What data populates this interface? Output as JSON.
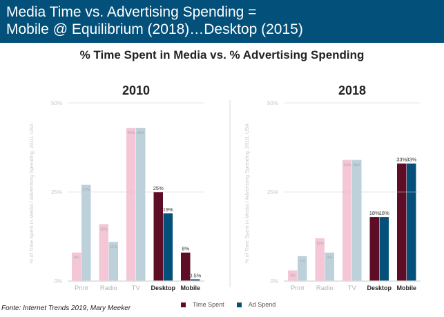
{
  "banner": {
    "line1": "Media Time vs. Advertising Spending =",
    "line2": "Mobile @ Equilibrium (2018)…Desktop (2015)",
    "color": "#03507a"
  },
  "subtitle": "% Time Spent in Media vs. % Advertising Spending",
  "source": "Fonte: Internet Trends 2019, Mary Meeker",
  "legend": [
    {
      "label": "Time Spent",
      "color": "#5e0d26"
    },
    {
      "label": "Ad Spend",
      "color": "#03507a"
    }
  ],
  "chart_data": [
    {
      "type": "bar",
      "title": "2010",
      "ylabel": "% of Time Spent in Media / Advertising Spending, 2010, USA",
      "xlabel": "",
      "ylim": [
        0,
        50
      ],
      "yticks": [
        "0%",
        "25%",
        "50%"
      ],
      "grid": true,
      "categories": [
        "Print",
        "Radio",
        "TV",
        "Desktop",
        "Mobile"
      ],
      "highlighted_categories": [
        "Desktop",
        "Mobile"
      ],
      "series": [
        {
          "name": "Time Spent",
          "values": [
            8,
            16,
            43,
            25,
            8
          ],
          "labels": [
            "8%",
            "16%",
            "43%",
            "25%",
            "8%"
          ]
        },
        {
          "name": "Ad Spend",
          "values": [
            27,
            11,
            43,
            19,
            0.5
          ],
          "labels": [
            "27%",
            "11%",
            "43%",
            "19%",
            "0.5%"
          ]
        }
      ],
      "colors": {
        "time_muted": "#f5c6d6",
        "ad_muted": "#bdd1db",
        "time": "#5e0d26",
        "ad": "#03507a"
      },
      "legend_position": "bottom"
    },
    {
      "type": "bar",
      "title": "2018",
      "ylabel": "% of Time Spent in Media / Advertising Spending, 2018, USA",
      "xlabel": "",
      "ylim": [
        0,
        50
      ],
      "yticks": [
        "0%",
        "25%",
        "50%"
      ],
      "grid": true,
      "categories": [
        "Print",
        "Radio",
        "TV",
        "Desktop",
        "Mobile"
      ],
      "highlighted_categories": [
        "Desktop",
        "Mobile"
      ],
      "series": [
        {
          "name": "Time Spent",
          "values": [
            3,
            12,
            34,
            18,
            33
          ],
          "labels": [
            "3%",
            "12%",
            "34%",
            "18%",
            "33%"
          ]
        },
        {
          "name": "Ad Spend",
          "values": [
            7,
            8,
            34,
            18,
            33
          ],
          "labels": [
            "7%",
            "8%",
            "34%",
            "18%",
            "33%"
          ]
        }
      ],
      "colors": {
        "time_muted": "#f5c6d6",
        "ad_muted": "#bdd1db",
        "time": "#5e0d26",
        "ad": "#03507a"
      },
      "legend_position": "bottom"
    }
  ]
}
